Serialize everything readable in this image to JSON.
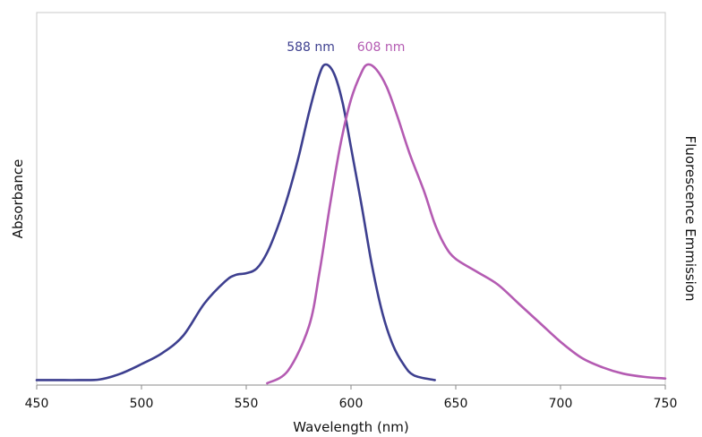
{
  "chart_data": {
    "type": "line",
    "xlabel": "Wavelength (nm)",
    "ylabel_left": "Absorbance",
    "ylabel_right": "Fluorescence Emmission",
    "xlim": [
      450,
      750
    ],
    "ylim": [
      0,
      1
    ],
    "x_ticks": [
      450,
      500,
      550,
      600,
      650,
      700,
      750
    ],
    "grid": false,
    "legend": "none",
    "series": [
      {
        "color": "#3d3f8f",
        "points": [
          [
            450,
            0.01
          ],
          [
            460,
            0.01
          ],
          [
            470,
            0.01
          ],
          [
            480,
            0.012
          ],
          [
            490,
            0.03
          ],
          [
            500,
            0.06
          ],
          [
            510,
            0.095
          ],
          [
            520,
            0.15
          ],
          [
            530,
            0.25
          ],
          [
            540,
            0.32
          ],
          [
            545,
            0.34
          ],
          [
            550,
            0.345
          ],
          [
            555,
            0.36
          ],
          [
            560,
            0.41
          ],
          [
            565,
            0.49
          ],
          [
            570,
            0.59
          ],
          [
            575,
            0.71
          ],
          [
            580,
            0.85
          ],
          [
            585,
            0.97
          ],
          [
            588,
            1.0
          ],
          [
            592,
            0.97
          ],
          [
            596,
            0.88
          ],
          [
            600,
            0.74
          ],
          [
            605,
            0.56
          ],
          [
            610,
            0.37
          ],
          [
            615,
            0.22
          ],
          [
            620,
            0.12
          ],
          [
            625,
            0.06
          ],
          [
            630,
            0.025
          ],
          [
            640,
            0.01
          ]
        ]
      },
      {
        "color": "#b45bb2",
        "points": [
          [
            560,
            0.0
          ],
          [
            570,
            0.04
          ],
          [
            580,
            0.18
          ],
          [
            585,
            0.35
          ],
          [
            590,
            0.56
          ],
          [
            595,
            0.75
          ],
          [
            600,
            0.89
          ],
          [
            605,
            0.975
          ],
          [
            608,
            1.0
          ],
          [
            612,
            0.985
          ],
          [
            617,
            0.93
          ],
          [
            622,
            0.84
          ],
          [
            628,
            0.72
          ],
          [
            635,
            0.6
          ],
          [
            640,
            0.5
          ],
          [
            645,
            0.43
          ],
          [
            650,
            0.39
          ],
          [
            660,
            0.35
          ],
          [
            670,
            0.31
          ],
          [
            680,
            0.25
          ],
          [
            690,
            0.19
          ],
          [
            700,
            0.13
          ],
          [
            710,
            0.08
          ],
          [
            720,
            0.05
          ],
          [
            730,
            0.03
          ],
          [
            740,
            0.02
          ],
          [
            750,
            0.015
          ]
        ]
      }
    ],
    "annotations": [
      {
        "text": "588 nm",
        "x": 588,
        "color": "#3d3f8f"
      },
      {
        "text": "608 nm",
        "x": 608,
        "color": "#b45bb2"
      }
    ]
  }
}
